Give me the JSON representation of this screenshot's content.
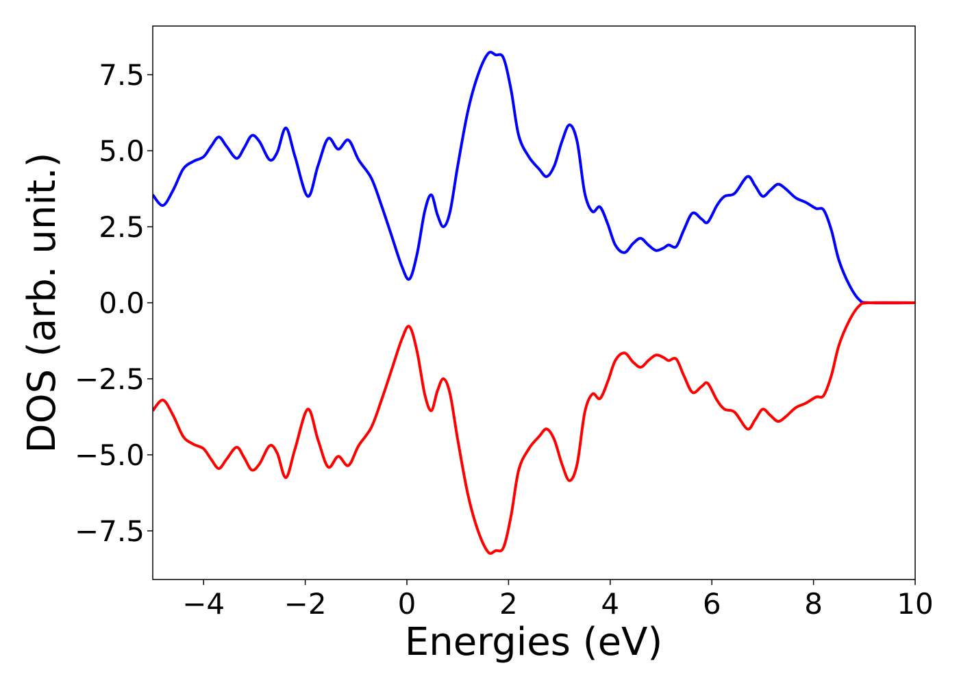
{
  "chart_data": {
    "type": "line",
    "title": "",
    "xlabel": "Energies (eV)",
    "ylabel": "DOS (arb. unit.)",
    "xlim": [
      -5,
      10
    ],
    "ylim": [
      -9.1,
      9.1
    ],
    "grid": false,
    "legend": "none",
    "x_ticks": [
      {
        "value": -4,
        "label": "−4"
      },
      {
        "value": -2,
        "label": "−2"
      },
      {
        "value": 0,
        "label": "0"
      },
      {
        "value": 2,
        "label": "2"
      },
      {
        "value": 4,
        "label": "4"
      },
      {
        "value": 6,
        "label": "6"
      },
      {
        "value": 8,
        "label": "8"
      },
      {
        "value": 10,
        "label": "10"
      }
    ],
    "y_ticks": [
      {
        "value": 7.5,
        "label": "7.5"
      },
      {
        "value": 5.0,
        "label": "5.0"
      },
      {
        "value": 2.5,
        "label": "2.5"
      },
      {
        "value": 0.0,
        "label": "0.0"
      },
      {
        "value": -2.5,
        "label": "−2.5"
      },
      {
        "value": -5.0,
        "label": "−5.0"
      },
      {
        "value": -7.5,
        "label": "−7.5"
      }
    ],
    "series": [
      {
        "color": "#0000ff",
        "points": [
          [
            -5.0,
            3.55
          ],
          [
            -4.8,
            3.2
          ],
          [
            -4.6,
            3.7
          ],
          [
            -4.4,
            4.4
          ],
          [
            -4.2,
            4.65
          ],
          [
            -4.0,
            4.8
          ],
          [
            -3.85,
            5.15
          ],
          [
            -3.7,
            5.45
          ],
          [
            -3.55,
            5.15
          ],
          [
            -3.35,
            4.75
          ],
          [
            -3.2,
            5.1
          ],
          [
            -3.05,
            5.5
          ],
          [
            -2.9,
            5.3
          ],
          [
            -2.7,
            4.7
          ],
          [
            -2.55,
            4.95
          ],
          [
            -2.38,
            5.75
          ],
          [
            -2.2,
            4.8
          ],
          [
            -1.95,
            3.5
          ],
          [
            -1.75,
            4.5
          ],
          [
            -1.55,
            5.4
          ],
          [
            -1.35,
            5.05
          ],
          [
            -1.15,
            5.35
          ],
          [
            -0.95,
            4.7
          ],
          [
            -0.7,
            4.1
          ],
          [
            -0.5,
            3.2
          ],
          [
            -0.3,
            2.2
          ],
          [
            -0.1,
            1.2
          ],
          [
            0.05,
            0.78
          ],
          [
            0.2,
            1.6
          ],
          [
            0.35,
            3.0
          ],
          [
            0.48,
            3.55
          ],
          [
            0.6,
            2.9
          ],
          [
            0.72,
            2.5
          ],
          [
            0.85,
            3.0
          ],
          [
            1.0,
            4.5
          ],
          [
            1.2,
            6.3
          ],
          [
            1.4,
            7.5
          ],
          [
            1.6,
            8.2
          ],
          [
            1.75,
            8.15
          ],
          [
            1.9,
            8.05
          ],
          [
            2.05,
            7.0
          ],
          [
            2.2,
            5.5
          ],
          [
            2.4,
            4.8
          ],
          [
            2.6,
            4.4
          ],
          [
            2.75,
            4.15
          ],
          [
            2.9,
            4.5
          ],
          [
            3.05,
            5.3
          ],
          [
            3.2,
            5.85
          ],
          [
            3.35,
            5.3
          ],
          [
            3.5,
            3.6
          ],
          [
            3.65,
            3.0
          ],
          [
            3.8,
            3.15
          ],
          [
            3.95,
            2.6
          ],
          [
            4.1,
            1.9
          ],
          [
            4.28,
            1.65
          ],
          [
            4.45,
            1.95
          ],
          [
            4.6,
            2.12
          ],
          [
            4.75,
            1.9
          ],
          [
            4.9,
            1.72
          ],
          [
            5.05,
            1.8
          ],
          [
            5.15,
            1.9
          ],
          [
            5.3,
            1.85
          ],
          [
            5.45,
            2.4
          ],
          [
            5.62,
            2.95
          ],
          [
            5.8,
            2.75
          ],
          [
            5.92,
            2.65
          ],
          [
            6.1,
            3.2
          ],
          [
            6.25,
            3.5
          ],
          [
            6.45,
            3.6
          ],
          [
            6.7,
            4.15
          ],
          [
            6.85,
            3.85
          ],
          [
            7.0,
            3.5
          ],
          [
            7.15,
            3.7
          ],
          [
            7.3,
            3.9
          ],
          [
            7.45,
            3.75
          ],
          [
            7.65,
            3.45
          ],
          [
            7.85,
            3.3
          ],
          [
            8.05,
            3.1
          ],
          [
            8.2,
            3.05
          ],
          [
            8.35,
            2.4
          ],
          [
            8.5,
            1.4
          ],
          [
            8.7,
            0.6
          ],
          [
            8.9,
            0.1
          ],
          [
            9.1,
            0.0
          ],
          [
            10.0,
            0.0
          ]
        ]
      },
      {
        "color": "#ff0000",
        "points": [
          [
            -5.0,
            -3.55
          ],
          [
            -4.8,
            -3.2
          ],
          [
            -4.6,
            -3.7
          ],
          [
            -4.4,
            -4.4
          ],
          [
            -4.2,
            -4.65
          ],
          [
            -4.0,
            -4.8
          ],
          [
            -3.85,
            -5.15
          ],
          [
            -3.7,
            -5.45
          ],
          [
            -3.55,
            -5.15
          ],
          [
            -3.35,
            -4.75
          ],
          [
            -3.2,
            -5.1
          ],
          [
            -3.05,
            -5.5
          ],
          [
            -2.9,
            -5.3
          ],
          [
            -2.7,
            -4.7
          ],
          [
            -2.55,
            -4.95
          ],
          [
            -2.38,
            -5.75
          ],
          [
            -2.2,
            -4.8
          ],
          [
            -1.95,
            -3.5
          ],
          [
            -1.75,
            -4.5
          ],
          [
            -1.55,
            -5.4
          ],
          [
            -1.35,
            -5.05
          ],
          [
            -1.15,
            -5.35
          ],
          [
            -0.95,
            -4.7
          ],
          [
            -0.7,
            -4.1
          ],
          [
            -0.5,
            -3.2
          ],
          [
            -0.3,
            -2.2
          ],
          [
            -0.1,
            -1.2
          ],
          [
            0.05,
            -0.78
          ],
          [
            0.2,
            -1.6
          ],
          [
            0.35,
            -3.0
          ],
          [
            0.48,
            -3.55
          ],
          [
            0.6,
            -2.9
          ],
          [
            0.72,
            -2.5
          ],
          [
            0.85,
            -3.0
          ],
          [
            1.0,
            -4.5
          ],
          [
            1.2,
            -6.3
          ],
          [
            1.4,
            -7.5
          ],
          [
            1.6,
            -8.2
          ],
          [
            1.75,
            -8.15
          ],
          [
            1.9,
            -8.05
          ],
          [
            2.05,
            -7.0
          ],
          [
            2.2,
            -5.5
          ],
          [
            2.4,
            -4.8
          ],
          [
            2.6,
            -4.4
          ],
          [
            2.75,
            -4.15
          ],
          [
            2.9,
            -4.5
          ],
          [
            3.05,
            -5.3
          ],
          [
            3.2,
            -5.85
          ],
          [
            3.35,
            -5.3
          ],
          [
            3.5,
            -3.6
          ],
          [
            3.65,
            -3.0
          ],
          [
            3.8,
            -3.15
          ],
          [
            3.95,
            -2.6
          ],
          [
            4.1,
            -1.9
          ],
          [
            4.28,
            -1.65
          ],
          [
            4.45,
            -1.95
          ],
          [
            4.6,
            -2.12
          ],
          [
            4.75,
            -1.9
          ],
          [
            4.9,
            -1.72
          ],
          [
            5.05,
            -1.8
          ],
          [
            5.15,
            -1.9
          ],
          [
            5.3,
            -1.85
          ],
          [
            5.45,
            -2.4
          ],
          [
            5.62,
            -2.95
          ],
          [
            5.8,
            -2.75
          ],
          [
            5.92,
            -2.65
          ],
          [
            6.1,
            -3.2
          ],
          [
            6.25,
            -3.5
          ],
          [
            6.45,
            -3.6
          ],
          [
            6.7,
            -4.15
          ],
          [
            6.85,
            -3.85
          ],
          [
            7.0,
            -3.5
          ],
          [
            7.15,
            -3.7
          ],
          [
            7.3,
            -3.9
          ],
          [
            7.45,
            -3.75
          ],
          [
            7.65,
            -3.45
          ],
          [
            7.85,
            -3.3
          ],
          [
            8.05,
            -3.1
          ],
          [
            8.2,
            -3.05
          ],
          [
            8.35,
            -2.4
          ],
          [
            8.5,
            -1.4
          ],
          [
            8.7,
            -0.6
          ],
          [
            8.9,
            -0.1
          ],
          [
            9.1,
            0.0
          ],
          [
            10.0,
            0.0
          ]
        ]
      }
    ]
  }
}
